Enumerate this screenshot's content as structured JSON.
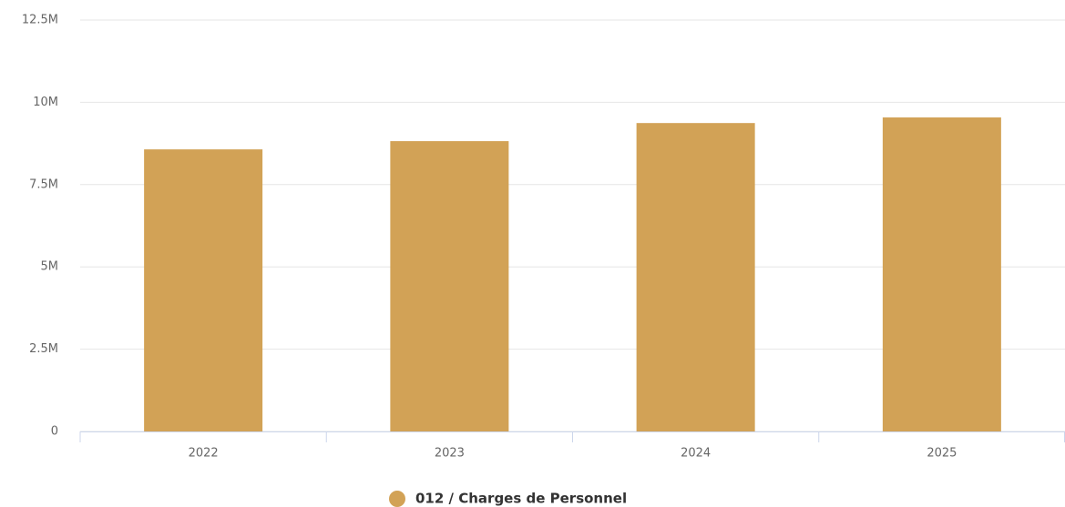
{
  "chart_data": {
    "type": "bar",
    "categories": [
      "2022",
      "2023",
      "2024",
      "2025"
    ],
    "series": [
      {
        "name": "012 / Charges de Personnel",
        "color": "#d2a256",
        "values": [
          8570000,
          8820000,
          9370000,
          9540000
        ]
      }
    ],
    "ylim": [
      0,
      12500000
    ],
    "yticks": [
      0,
      {
        "value": 2500000,
        "label": "2.5M"
      },
      {
        "value": 5000000,
        "label": "5M"
      },
      {
        "value": 7500000,
        "label": "7.5M"
      },
      {
        "value": 10000000,
        "label": "10M"
      },
      {
        "value": 12500000,
        "label": "12.5M"
      }
    ],
    "grid": true,
    "legend": "bottom"
  }
}
